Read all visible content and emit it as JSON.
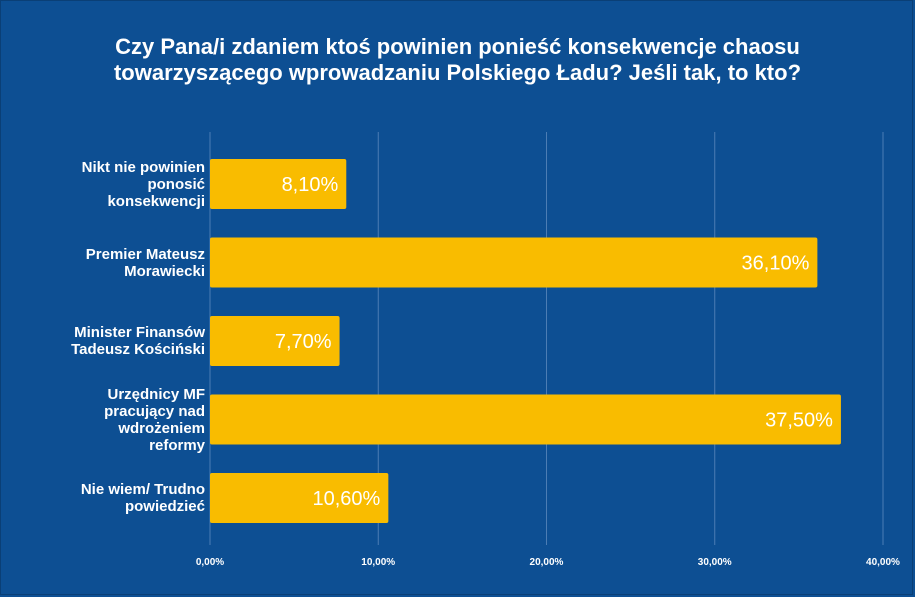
{
  "chart_data": {
    "type": "bar",
    "orientation": "horizontal",
    "title_lines": [
      "Czy Pana/i zdaniem ktoś powinien ponieść konsekwencje chaosu",
      "towarzyszącego wprowadzaniu Polskiego Ładu? Jeśli tak, to kto?"
    ],
    "categories": [
      [
        "Nikt nie powinien",
        "ponosić",
        "konsekwencji"
      ],
      [
        "Premier Mateusz",
        "Morawiecki"
      ],
      [
        "Minister Finansów",
        "Tadeusz Kościński"
      ],
      [
        "Urzędnicy MF",
        "pracujący nad",
        "wdrożeniem",
        "reformy"
      ],
      [
        "Nie wiem/ Trudno",
        "powiedzieć"
      ]
    ],
    "values": [
      8.1,
      36.1,
      7.7,
      37.5,
      10.6
    ],
    "value_labels": [
      "8,10%",
      "36,10%",
      "7,70%",
      "37,50%",
      "10,60%"
    ],
    "xlim": [
      0,
      40
    ],
    "x_ticks": [
      0,
      10,
      20,
      30,
      40
    ],
    "x_tick_labels": [
      "0,00%",
      "10,00%",
      "20,00%",
      "30,00%",
      "40,00%"
    ],
    "colors": {
      "background": "#0d4f93",
      "bar": "#f9bc00",
      "text": "#ffffff",
      "grid": "#4c7db4"
    }
  }
}
